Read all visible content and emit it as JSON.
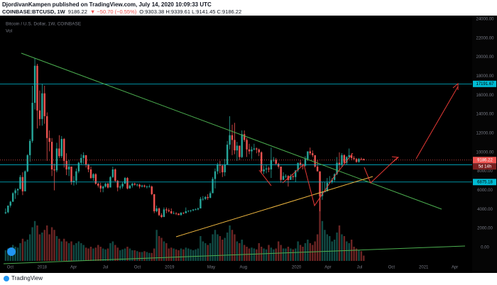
{
  "header": {
    "line1": "DjordivanKampen published on TradingView.com, July 14, 2020 10:09:33 UTC",
    "symbol": "COINBASE:BTCUSD, 1W",
    "price": "9186.22",
    "change": "▼ −50.70 (−0.55%)",
    "ohlc": "O:9303.38 H:9339.61 L:9141.45 C:9186.22"
  },
  "footer": {
    "brand": "TradingView"
  },
  "chart_data": {
    "type": "candlestick",
    "title": "Bitcoin / U.S. Dollar, 1W, COINBASE",
    "volume_label": "Vol",
    "up_color": "#26a69a",
    "down_color": "#ef5350",
    "level_color": "#00bcd4",
    "countdown": "5d 14h",
    "xlim": [
      -2.3,
      191.5
    ],
    "ylim": [
      -1416,
      24373
    ],
    "xticks": [
      {
        "value": 1.9,
        "label": "Oct"
      },
      {
        "value": 15,
        "label": "2018"
      },
      {
        "value": 27.9,
        "label": "Apr"
      },
      {
        "value": 41,
        "label": "Jul"
      },
      {
        "value": 54.1,
        "label": "Oct"
      },
      {
        "value": 67.3,
        "label": "2019"
      },
      {
        "value": 84.4,
        "label": "May"
      },
      {
        "value": 97.6,
        "label": "Aug"
      },
      {
        "value": 119.4,
        "label": "2020"
      },
      {
        "value": 132.3,
        "label": "Apr"
      },
      {
        "value": 145.3,
        "label": "Jul"
      },
      {
        "value": 158.4,
        "label": "Oct"
      },
      {
        "value": 171.6,
        "label": "2021"
      },
      {
        "value": 184.4,
        "label": "Apr"
      }
    ],
    "yticks": [
      {
        "value": 24000,
        "label": "24000.00"
      },
      {
        "value": 22000,
        "label": "22000.00"
      },
      {
        "value": 20000,
        "label": "20000.00"
      },
      {
        "value": 18000,
        "label": "18000.00"
      },
      {
        "value": 16000,
        "label": "16000.00"
      },
      {
        "value": 14000,
        "label": "14000.00"
      },
      {
        "value": 12000,
        "label": "12000.00"
      },
      {
        "value": 10000,
        "label": "10000.00"
      },
      {
        "value": 8000,
        "label": "8000.00"
      },
      {
        "value": 6000,
        "label": "6000.00"
      },
      {
        "value": 4000,
        "label": "4000.00"
      },
      {
        "value": 2000,
        "label": "2000.00"
      },
      {
        "value": 0,
        "label": "0.00"
      }
    ],
    "levels": [
      17191.67,
      8697.94,
      6875.18
    ],
    "candles": [
      [
        3600,
        4100,
        3500,
        3700
      ],
      [
        3700,
        4400,
        3600,
        4400
      ],
      [
        4400,
        4900,
        4200,
        4800
      ],
      [
        4800,
        5800,
        4800,
        5700
      ],
      [
        5700,
        6200,
        5100,
        6000
      ],
      [
        6000,
        6200,
        5500,
        6150
      ],
      [
        6150,
        7600,
        6100,
        7400
      ],
      [
        7400,
        7900,
        5500,
        5900
      ],
      [
        5900,
        8100,
        5900,
        8000
      ],
      [
        8000,
        9800,
        7900,
        9700
      ],
      [
        9700,
        11400,
        9000,
        11200
      ],
      [
        11200,
        17000,
        11000,
        15200
      ],
      [
        15200,
        19900,
        14500,
        19100
      ],
      [
        19100,
        19300,
        12500,
        14400
      ],
      [
        14400,
        16500,
        12800,
        13500
      ],
      [
        13500,
        17200,
        12800,
        16200
      ],
      [
        16200,
        17000,
        13000,
        13800
      ],
      [
        13800,
        14200,
        9100,
        11500
      ],
      [
        11500,
        12300,
        10100,
        11100
      ],
      [
        11100,
        11500,
        7500,
        8200
      ],
      [
        8200,
        8800,
        6000,
        8100
      ],
      [
        8100,
        11000,
        7900,
        10400
      ],
      [
        10400,
        11800,
        9400,
        9600
      ],
      [
        9600,
        11700,
        9400,
        11400
      ],
      [
        11400,
        11500,
        8400,
        9100
      ],
      [
        9100,
        9900,
        7600,
        8200
      ],
      [
        8200,
        9200,
        7500,
        8500
      ],
      [
        8500,
        8500,
        6600,
        6900
      ],
      [
        6900,
        7500,
        6500,
        7000
      ],
      [
        7000,
        8300,
        6600,
        8000
      ],
      [
        8000,
        9000,
        7800,
        8900
      ],
      [
        8900,
        9800,
        8700,
        9400
      ],
      [
        9400,
        10000,
        8800,
        9700
      ],
      [
        9700,
        9700,
        8400,
        8700
      ],
      [
        8700,
        8800,
        7900,
        8200
      ],
      [
        8200,
        8500,
        7200,
        7300
      ],
      [
        7300,
        7800,
        7000,
        7700
      ],
      [
        7700,
        7800,
        6600,
        6700
      ],
      [
        6700,
        6800,
        6300,
        6500
      ],
      [
        6500,
        6800,
        5800,
        6200
      ],
      [
        6200,
        6500,
        5800,
        6400
      ],
      [
        6400,
        6800,
        6300,
        6700
      ],
      [
        6700,
        6800,
        6200,
        6300
      ],
      [
        6300,
        7500,
        6300,
        7400
      ],
      [
        7400,
        8500,
        7300,
        8200
      ],
      [
        8200,
        8300,
        6900,
        7000
      ],
      [
        7000,
        7100,
        5900,
        6300
      ],
      [
        6300,
        6600,
        6100,
        6400
      ],
      [
        6400,
        6900,
        6200,
        6700
      ],
      [
        6700,
        7400,
        6700,
        7300
      ],
      [
        7300,
        7400,
        6100,
        6200
      ],
      [
        6200,
        6600,
        6200,
        6500
      ],
      [
        6500,
        6800,
        6300,
        6700
      ],
      [
        6700,
        6800,
        6500,
        6600
      ],
      [
        6600,
        6700,
        6400,
        6600
      ],
      [
        6600,
        6700,
        6200,
        6400
      ],
      [
        6400,
        6600,
        6300,
        6500
      ],
      [
        6500,
        6600,
        6300,
        6400
      ],
      [
        6400,
        6500,
        6200,
        6400
      ],
      [
        6400,
        6600,
        6300,
        6400
      ],
      [
        6400,
        6500,
        5500,
        5600
      ],
      [
        5600,
        5600,
        3600,
        3800
      ],
      [
        3800,
        4400,
        3700,
        4100
      ],
      [
        4100,
        4200,
        3300,
        3400
      ],
      [
        3400,
        3600,
        3100,
        3200
      ],
      [
        3200,
        4200,
        3200,
        4000
      ],
      [
        4000,
        4200,
        3600,
        3900
      ],
      [
        3900,
        4100,
        3700,
        3800
      ],
      [
        3800,
        4100,
        3500,
        3600
      ],
      [
        3600,
        3800,
        3500,
        3600
      ],
      [
        3600,
        3700,
        3400,
        3550
      ],
      [
        3550,
        3600,
        3400,
        3400
      ],
      [
        3400,
        3700,
        3350,
        3650
      ],
      [
        3650,
        3700,
        3500,
        3600
      ],
      [
        3600,
        4200,
        3600,
        3800
      ],
      [
        3800,
        3900,
        3700,
        3850
      ],
      [
        3850,
        3950,
        3700,
        3900
      ],
      [
        3900,
        4000,
        3800,
        4000
      ],
      [
        4000,
        4100,
        3900,
        4000
      ],
      [
        4000,
        4200,
        3900,
        4100
      ],
      [
        4100,
        5300,
        4100,
        5100
      ],
      [
        5100,
        5400,
        4900,
        5100
      ],
      [
        5100,
        5400,
        5000,
        5300
      ],
      [
        5300,
        5600,
        5000,
        5200
      ],
      [
        5200,
        5900,
        5200,
        5700
      ],
      [
        5700,
        7400,
        5700,
        7200
      ],
      [
        7200,
        8300,
        6200,
        8000
      ],
      [
        8000,
        8900,
        7700,
        8700
      ],
      [
        8700,
        9100,
        7800,
        8600
      ],
      [
        8600,
        8700,
        7400,
        7900
      ],
      [
        7900,
        9300,
        7500,
        8700
      ],
      [
        8700,
        11200,
        8700,
        10800
      ],
      [
        10800,
        13800,
        10300,
        11800
      ],
      [
        11800,
        12900,
        9700,
        11300
      ],
      [
        11300,
        13100,
        9800,
        10200
      ],
      [
        10200,
        11100,
        9100,
        10700
      ],
      [
        10700,
        10700,
        9200,
        9500
      ],
      [
        9500,
        12300,
        9400,
        11900
      ],
      [
        11900,
        12300,
        11100,
        11300
      ],
      [
        11300,
        11500,
        9500,
        10300
      ],
      [
        10300,
        10900,
        9800,
        10100
      ],
      [
        10100,
        10600,
        9300,
        10300
      ],
      [
        10300,
        10900,
        10200,
        10400
      ],
      [
        10400,
        10500,
        9900,
        10300
      ],
      [
        10300,
        10400,
        9600,
        10000
      ],
      [
        10000,
        10100,
        7800,
        8000
      ],
      [
        8000,
        8600,
        7700,
        8200
      ],
      [
        8200,
        8700,
        7800,
        8300
      ],
      [
        8300,
        8500,
        7900,
        8200
      ],
      [
        8200,
        10500,
        7300,
        9200
      ],
      [
        9200,
        9500,
        9000,
        9200
      ],
      [
        9200,
        9400,
        8700,
        8800
      ],
      [
        8800,
        8900,
        8300,
        8500
      ],
      [
        8500,
        8500,
        6800,
        7100
      ],
      [
        7100,
        7900,
        7100,
        7500
      ],
      [
        7500,
        7700,
        7300,
        7500
      ],
      [
        7500,
        7600,
        6400,
        7100
      ],
      [
        7100,
        7700,
        7100,
        7500
      ],
      [
        7500,
        7700,
        7100,
        7400
      ],
      [
        7400,
        8100,
        6900,
        8100
      ],
      [
        8100,
        8900,
        7900,
        8900
      ],
      [
        8900,
        9200,
        8500,
        8700
      ],
      [
        8700,
        8800,
        8200,
        8600
      ],
      [
        8600,
        9600,
        8500,
        9300
      ],
      [
        9300,
        10100,
        9100,
        10100
      ],
      [
        10100,
        10500,
        9700,
        9900
      ],
      [
        9900,
        10200,
        9500,
        9700
      ],
      [
        9700,
        9700,
        8400,
        8500
      ],
      [
        8500,
        9200,
        8000,
        8000
      ],
      [
        8000,
        8000,
        3800,
        5400
      ],
      [
        5400,
        6900,
        5000,
        5800
      ],
      [
        5800,
        6900,
        5800,
        5900
      ],
      [
        5900,
        7300,
        5900,
        6800
      ],
      [
        6800,
        7500,
        6700,
        6900
      ],
      [
        6900,
        7300,
        6700,
        7100
      ],
      [
        7100,
        7800,
        6900,
        7700
      ],
      [
        7700,
        9500,
        7600,
        8900
      ],
      [
        8900,
        10000,
        8100,
        8700
      ],
      [
        8700,
        9900,
        8500,
        9700
      ],
      [
        9700,
        9800,
        8800,
        8900
      ],
      [
        8900,
        9600,
        8700,
        9500
      ],
      [
        9500,
        10400,
        9300,
        9700
      ],
      [
        9700,
        9900,
        9200,
        9400
      ],
      [
        9400,
        9600,
        9200,
        9300
      ],
      [
        9300,
        9400,
        8900,
        9000
      ],
      [
        9000,
        9400,
        8900,
        9300
      ],
      [
        9300,
        9450,
        9150,
        9237
      ],
      [
        9303.38,
        9339.61,
        9141.45,
        9186.22
      ]
    ],
    "volume": [
      12,
      14,
      14,
      18,
      16,
      15,
      20,
      25,
      22,
      24,
      30,
      38,
      45,
      40,
      30,
      32,
      35,
      40,
      30,
      38,
      35,
      28,
      25,
      22,
      25,
      22,
      20,
      22,
      18,
      20,
      22,
      20,
      18,
      15,
      14,
      16,
      14,
      15,
      18,
      16,
      14,
      13,
      14,
      20,
      22,
      18,
      15,
      12,
      13,
      14,
      16,
      14,
      12,
      12,
      11,
      10,
      10,
      11,
      10,
      9,
      9,
      14,
      35,
      28,
      26,
      22,
      20,
      14,
      15,
      14,
      13,
      12,
      14,
      13,
      15,
      14,
      13,
      12,
      13,
      14,
      28,
      22,
      20,
      18,
      20,
      30,
      35,
      30,
      28,
      24,
      26,
      32,
      40,
      35,
      30,
      22,
      20,
      24,
      18,
      16,
      14,
      15,
      14,
      13,
      20,
      16,
      14,
      13,
      18,
      15,
      13,
      14,
      22,
      18,
      14,
      14,
      16,
      14,
      13,
      14,
      22,
      18,
      16,
      20,
      24,
      20,
      18,
      22,
      30,
      100,
      45,
      35,
      30,
      28,
      22,
      24,
      32,
      40,
      30,
      28,
      22,
      20,
      24,
      16,
      14,
      12,
      11,
      6
    ]
  }
}
